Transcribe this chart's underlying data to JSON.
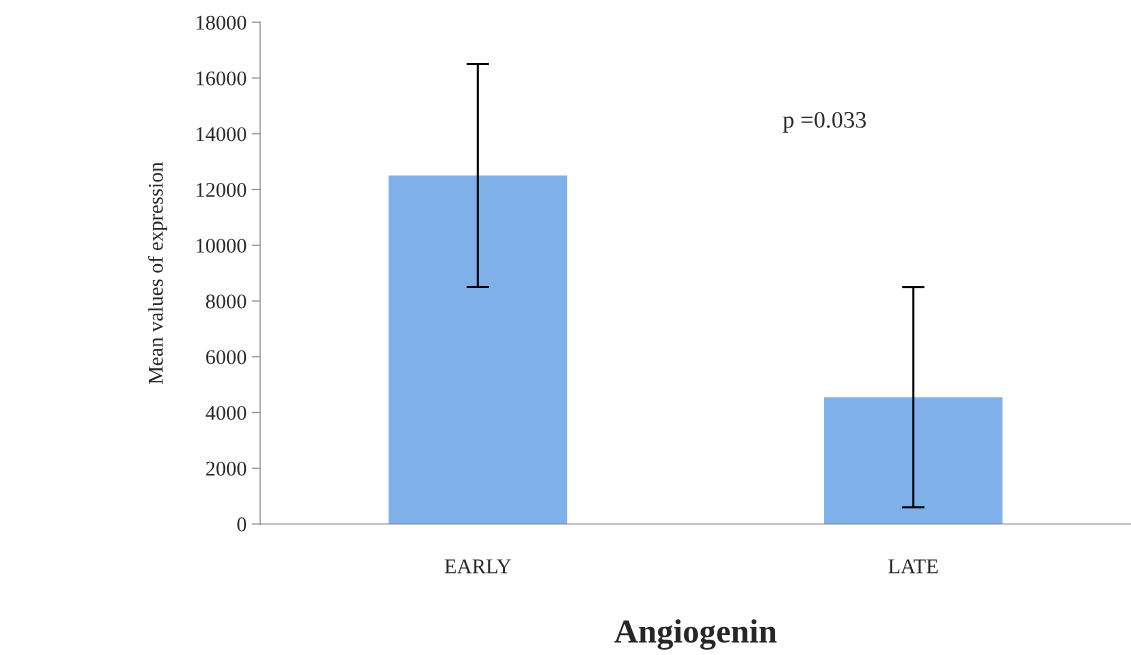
{
  "chart_data": {
    "type": "bar",
    "xlabel": "Angiogenin",
    "ylabel": "Mean values of expression",
    "categories": [
      "EARLY",
      "LATE"
    ],
    "values": [
      12500,
      4550
    ],
    "errors": [
      4000,
      3950
    ],
    "color": "#7fb0ea",
    "ylim": [
      0,
      18000
    ],
    "yticks": [
      0,
      2000,
      4000,
      6000,
      8000,
      10000,
      12000,
      14000,
      16000,
      18000
    ],
    "grid": false,
    "legend": false,
    "annotations": [
      "p =0.033"
    ]
  }
}
